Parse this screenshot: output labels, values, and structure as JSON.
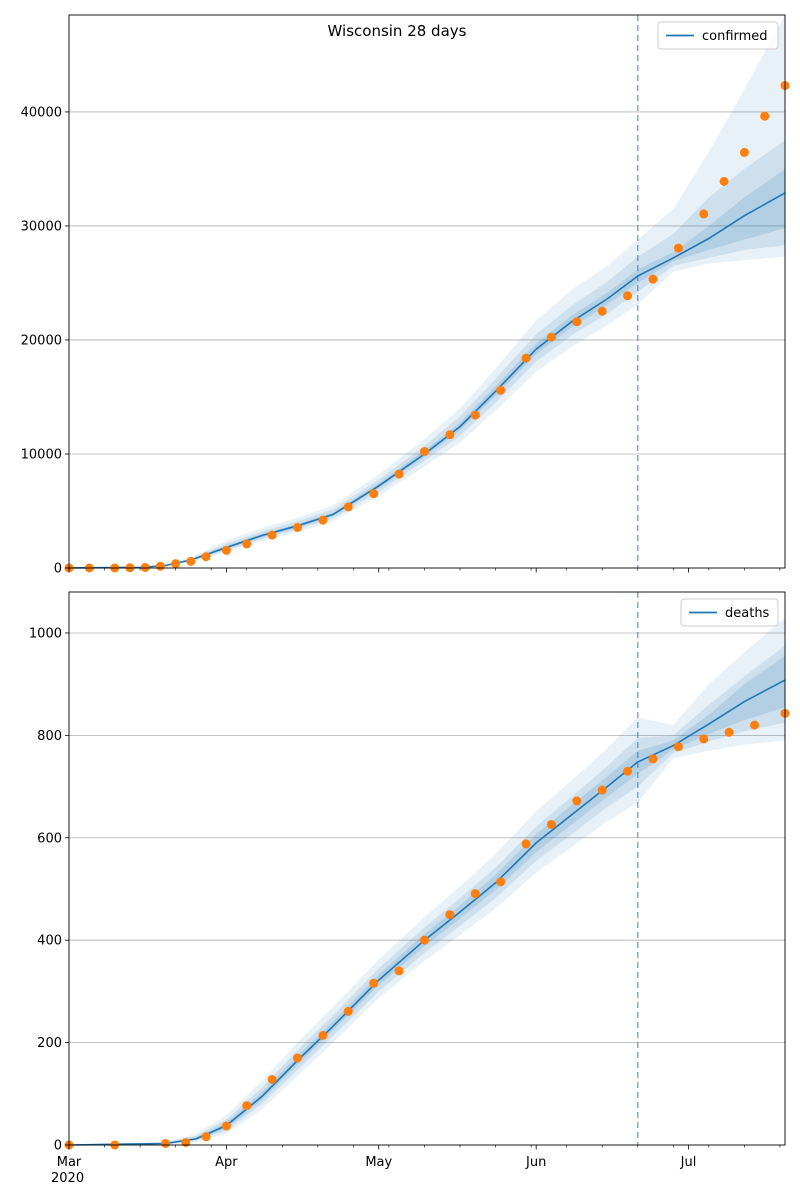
{
  "figure": {
    "title": "Wisconsin 28 days"
  },
  "colors": {
    "model_line": "#1f77b4",
    "observed_points": "#ff7f0e",
    "band": "#1f77b4",
    "grid": "#b0b0b0",
    "forecast_divider": "#1f77b4"
  },
  "x_axis": {
    "ticks": [
      {
        "date": "2020-03-01",
        "label": "Mar",
        "sublabel": "2020"
      },
      {
        "date": "2020-04-01",
        "label": "Apr"
      },
      {
        "date": "2020-05-01",
        "label": "May"
      },
      {
        "date": "2020-06-01",
        "label": "Jun"
      },
      {
        "date": "2020-07-01",
        "label": "Jul"
      }
    ]
  },
  "chart_data": [
    {
      "type": "line",
      "series_name": "confirmed",
      "legend_label": "confirmed",
      "legend_position": "top-right",
      "x_range": [
        "2020-03-01",
        "2020-07-20"
      ],
      "ylim": [
        0,
        48500
      ],
      "yticks": [
        0,
        10000,
        20000,
        30000,
        40000
      ],
      "grid": "horizontal",
      "forecast_start": "2020-06-21",
      "model": [
        {
          "x": "2020-03-01",
          "y": 10,
          "bands": [
            [
              5,
              15
            ],
            [
              8,
              12
            ],
            [
              9,
              11
            ]
          ]
        },
        {
          "x": "2020-03-15",
          "y": 50,
          "bands": [
            [
              30,
              80
            ],
            [
              40,
              65
            ],
            [
              45,
              55
            ]
          ]
        },
        {
          "x": "2020-03-20",
          "y": 220,
          "bands": [
            [
              150,
              320
            ],
            [
              180,
              270
            ],
            [
              200,
              240
            ]
          ]
        },
        {
          "x": "2020-03-25",
          "y": 700,
          "bands": [
            [
              500,
              950
            ],
            [
              580,
              830
            ],
            [
              640,
              760
            ]
          ]
        },
        {
          "x": "2020-04-01",
          "y": 1800,
          "bands": [
            [
              1400,
              2400
            ],
            [
              1550,
              2150
            ],
            [
              1680,
              1950
            ]
          ]
        },
        {
          "x": "2020-04-08",
          "y": 2850,
          "bands": [
            [
              2350,
              3500
            ],
            [
              2550,
              3200
            ],
            [
              2700,
              3000
            ]
          ]
        },
        {
          "x": "2020-04-15",
          "y": 3700,
          "bands": [
            [
              3150,
              4400
            ],
            [
              3350,
              4100
            ],
            [
              3550,
              3850
            ]
          ]
        },
        {
          "x": "2020-04-22",
          "y": 4700,
          "bands": [
            [
              4100,
              5500
            ],
            [
              4350,
              5150
            ],
            [
              4550,
              4850
            ]
          ]
        },
        {
          "x": "2020-05-01",
          "y": 7200,
          "bands": [
            [
              6300,
              8200
            ],
            [
              6700,
              7750
            ],
            [
              7000,
              7450
            ]
          ]
        },
        {
          "x": "2020-05-10",
          "y": 10000,
          "bands": [
            [
              8900,
              11300
            ],
            [
              9400,
              10700
            ],
            [
              9750,
              10300
            ]
          ]
        },
        {
          "x": "2020-05-17",
          "y": 12400,
          "bands": [
            [
              11000,
              14000
            ],
            [
              11600,
              13300
            ],
            [
              12100,
              12750
            ]
          ]
        },
        {
          "x": "2020-05-24",
          "y": 15500,
          "bands": [
            [
              13800,
              17500
            ],
            [
              14500,
              16600
            ],
            [
              15100,
              15950
            ]
          ]
        },
        {
          "x": "2020-06-01",
          "y": 19200,
          "bands": [
            [
              17200,
              21700
            ],
            [
              18100,
              20500
            ],
            [
              18750,
              19700
            ]
          ]
        },
        {
          "x": "2020-06-08",
          "y": 21600,
          "bands": [
            [
              19400,
              24400
            ],
            [
              20400,
              23000
            ],
            [
              21100,
              22150
            ]
          ]
        },
        {
          "x": "2020-06-15",
          "y": 23600,
          "bands": [
            [
              21300,
              26500
            ],
            [
              22300,
              25100
            ],
            [
              23100,
              24150
            ]
          ]
        },
        {
          "x": "2020-06-21",
          "y": 25600,
          "bands": [
            [
              23100,
              28800
            ],
            [
              24200,
              27300
            ],
            [
              25000,
              26200
            ]
          ]
        },
        {
          "x": "2020-06-28",
          "y": 27200,
          "bands": [
            [
              26000,
              31500
            ],
            [
              26500,
              29300
            ],
            [
              26900,
              27700
            ]
          ]
        },
        {
          "x": "2020-07-05",
          "y": 28900,
          "bands": [
            [
              26700,
              36500
            ],
            [
              27200,
              32500
            ],
            [
              27900,
              30000
            ]
          ]
        },
        {
          "x": "2020-07-12",
          "y": 30900,
          "bands": [
            [
              27000,
              42000
            ],
            [
              27900,
              35000
            ],
            [
              28800,
              32500
            ]
          ]
        },
        {
          "x": "2020-07-20",
          "y": 32900,
          "bands": [
            [
              27300,
              48500
            ],
            [
              28300,
              37500
            ],
            [
              29800,
              35000
            ]
          ]
        }
      ],
      "observed": [
        {
          "x": "2020-03-01",
          "y": 1
        },
        {
          "x": "2020-03-05",
          "y": 1
        },
        {
          "x": "2020-03-10",
          "y": 3
        },
        {
          "x": "2020-03-13",
          "y": 19
        },
        {
          "x": "2020-03-16",
          "y": 47
        },
        {
          "x": "2020-03-19",
          "y": 155
        },
        {
          "x": "2020-03-22",
          "y": 381
        },
        {
          "x": "2020-03-25",
          "y": 585
        },
        {
          "x": "2020-03-28",
          "y": 989
        },
        {
          "x": "2020-04-01",
          "y": 1550
        },
        {
          "x": "2020-04-05",
          "y": 2112
        },
        {
          "x": "2020-04-10",
          "y": 2885
        },
        {
          "x": "2020-04-15",
          "y": 3555
        },
        {
          "x": "2020-04-20",
          "y": 4199
        },
        {
          "x": "2020-04-25",
          "y": 5356
        },
        {
          "x": "2020-04-30",
          "y": 6520
        },
        {
          "x": "2020-05-05",
          "y": 8236
        },
        {
          "x": "2020-05-10",
          "y": 10219
        },
        {
          "x": "2020-05-15",
          "y": 11685
        },
        {
          "x": "2020-05-20",
          "y": 13413
        },
        {
          "x": "2020-05-25",
          "y": 15584
        },
        {
          "x": "2020-05-30",
          "y": 18403
        },
        {
          "x": "2020-06-04",
          "y": 20249
        },
        {
          "x": "2020-06-09",
          "y": 21593
        },
        {
          "x": "2020-06-14",
          "y": 22518
        },
        {
          "x": "2020-06-19",
          "y": 23876
        },
        {
          "x": "2020-06-24",
          "y": 25331
        },
        {
          "x": "2020-06-29",
          "y": 28058
        },
        {
          "x": "2020-07-04",
          "y": 31055
        },
        {
          "x": "2020-07-08",
          "y": 33908
        },
        {
          "x": "2020-07-12",
          "y": 36448
        },
        {
          "x": "2020-07-16",
          "y": 39627
        },
        {
          "x": "2020-07-20",
          "y": 42315
        }
      ]
    },
    {
      "type": "line",
      "series_name": "deaths",
      "legend_label": "deaths",
      "legend_position": "top-right",
      "x_range": [
        "2020-03-01",
        "2020-07-20"
      ],
      "ylim": [
        0,
        1080
      ],
      "yticks": [
        0,
        200,
        400,
        600,
        800,
        1000
      ],
      "grid": "horizontal",
      "forecast_start": "2020-06-21",
      "model": [
        {
          "x": "2020-03-01",
          "y": 0,
          "bands": [
            [
              0,
              1
            ],
            [
              0,
              1
            ],
            [
              0,
              0
            ]
          ]
        },
        {
          "x": "2020-03-20",
          "y": 3,
          "bands": [
            [
              1,
              6
            ],
            [
              2,
              5
            ],
            [
              2,
              4
            ]
          ]
        },
        {
          "x": "2020-03-26",
          "y": 12,
          "bands": [
            [
              5,
              22
            ],
            [
              8,
              18
            ],
            [
              10,
              15
            ]
          ]
        },
        {
          "x": "2020-04-01",
          "y": 38,
          "bands": [
            [
              22,
              58
            ],
            [
              28,
              50
            ],
            [
              33,
              44
            ]
          ]
        },
        {
          "x": "2020-04-08",
          "y": 95,
          "bands": [
            [
              70,
              125
            ],
            [
              80,
              112
            ],
            [
              88,
              103
            ]
          ]
        },
        {
          "x": "2020-04-15",
          "y": 165,
          "bands": [
            [
              135,
              200
            ],
            [
              147,
              185
            ],
            [
              157,
              174
            ]
          ]
        },
        {
          "x": "2020-04-22",
          "y": 232,
          "bands": [
            [
              200,
              270
            ],
            [
              213,
              253
            ],
            [
              224,
              241
            ]
          ]
        },
        {
          "x": "2020-05-01",
          "y": 322,
          "bands": [
            [
              287,
              362
            ],
            [
              300,
              345
            ],
            [
              312,
              333
            ]
          ]
        },
        {
          "x": "2020-05-10",
          "y": 400,
          "bands": [
            [
              360,
              445
            ],
            [
              375,
              425
            ],
            [
              388,
              412
            ]
          ]
        },
        {
          "x": "2020-05-17",
          "y": 455,
          "bands": [
            [
              410,
              505
            ],
            [
              428,
              482
            ],
            [
              442,
              468
            ]
          ]
        },
        {
          "x": "2020-05-24",
          "y": 512,
          "bands": [
            [
              462,
              568
            ],
            [
              482,
              542
            ],
            [
              498,
              528
            ]
          ]
        },
        {
          "x": "2020-06-01",
          "y": 590,
          "bands": [
            [
              532,
              652
            ],
            [
              555,
              622
            ],
            [
              572,
              607
            ]
          ]
        },
        {
          "x": "2020-06-08",
          "y": 645,
          "bands": [
            [
              582,
              712
            ],
            [
              607,
              680
            ],
            [
              626,
              664
            ]
          ]
        },
        {
          "x": "2020-06-15",
          "y": 700,
          "bands": [
            [
              632,
              775
            ],
            [
              660,
              740
            ],
            [
              680,
              720
            ]
          ]
        },
        {
          "x": "2020-06-21",
          "y": 748,
          "bands": [
            [
              668,
              835
            ],
            [
              700,
              795
            ],
            [
              725,
              770
            ]
          ]
        },
        {
          "x": "2020-06-28",
          "y": 780,
          "bands": [
            [
              755,
              820
            ],
            [
              765,
              800
            ],
            [
              772,
              790
            ]
          ]
        },
        {
          "x": "2020-07-05",
          "y": 822,
          "bands": [
            [
              770,
              900
            ],
            [
              788,
              860
            ],
            [
              803,
              840
            ]
          ]
        },
        {
          "x": "2020-07-12",
          "y": 866,
          "bands": [
            [
              782,
              962
            ],
            [
              808,
              915
            ],
            [
              830,
              900
            ]
          ]
        },
        {
          "x": "2020-07-20",
          "y": 908,
          "bands": [
            [
              790,
              1030
            ],
            [
              825,
              975
            ],
            [
              855,
              955
            ]
          ]
        }
      ],
      "observed": [
        {
          "x": "2020-03-01",
          "y": 0
        },
        {
          "x": "2020-03-10",
          "y": 0
        },
        {
          "x": "2020-03-20",
          "y": 3
        },
        {
          "x": "2020-03-24",
          "y": 5
        },
        {
          "x": "2020-03-28",
          "y": 16
        },
        {
          "x": "2020-04-01",
          "y": 37
        },
        {
          "x": "2020-04-05",
          "y": 77
        },
        {
          "x": "2020-04-10",
          "y": 128
        },
        {
          "x": "2020-04-15",
          "y": 170
        },
        {
          "x": "2020-04-20",
          "y": 214
        },
        {
          "x": "2020-04-25",
          "y": 261
        },
        {
          "x": "2020-04-30",
          "y": 316
        },
        {
          "x": "2020-05-05",
          "y": 340
        },
        {
          "x": "2020-05-10",
          "y": 400
        },
        {
          "x": "2020-05-15",
          "y": 450
        },
        {
          "x": "2020-05-20",
          "y": 491
        },
        {
          "x": "2020-05-25",
          "y": 514
        },
        {
          "x": "2020-05-30",
          "y": 588
        },
        {
          "x": "2020-06-04",
          "y": 626
        },
        {
          "x": "2020-06-09",
          "y": 672
        },
        {
          "x": "2020-06-14",
          "y": 693
        },
        {
          "x": "2020-06-19",
          "y": 730
        },
        {
          "x": "2020-06-24",
          "y": 754
        },
        {
          "x": "2020-06-29",
          "y": 778
        },
        {
          "x": "2020-07-04",
          "y": 793
        },
        {
          "x": "2020-07-09",
          "y": 806
        },
        {
          "x": "2020-07-14",
          "y": 820
        },
        {
          "x": "2020-07-20",
          "y": 843
        }
      ]
    }
  ]
}
